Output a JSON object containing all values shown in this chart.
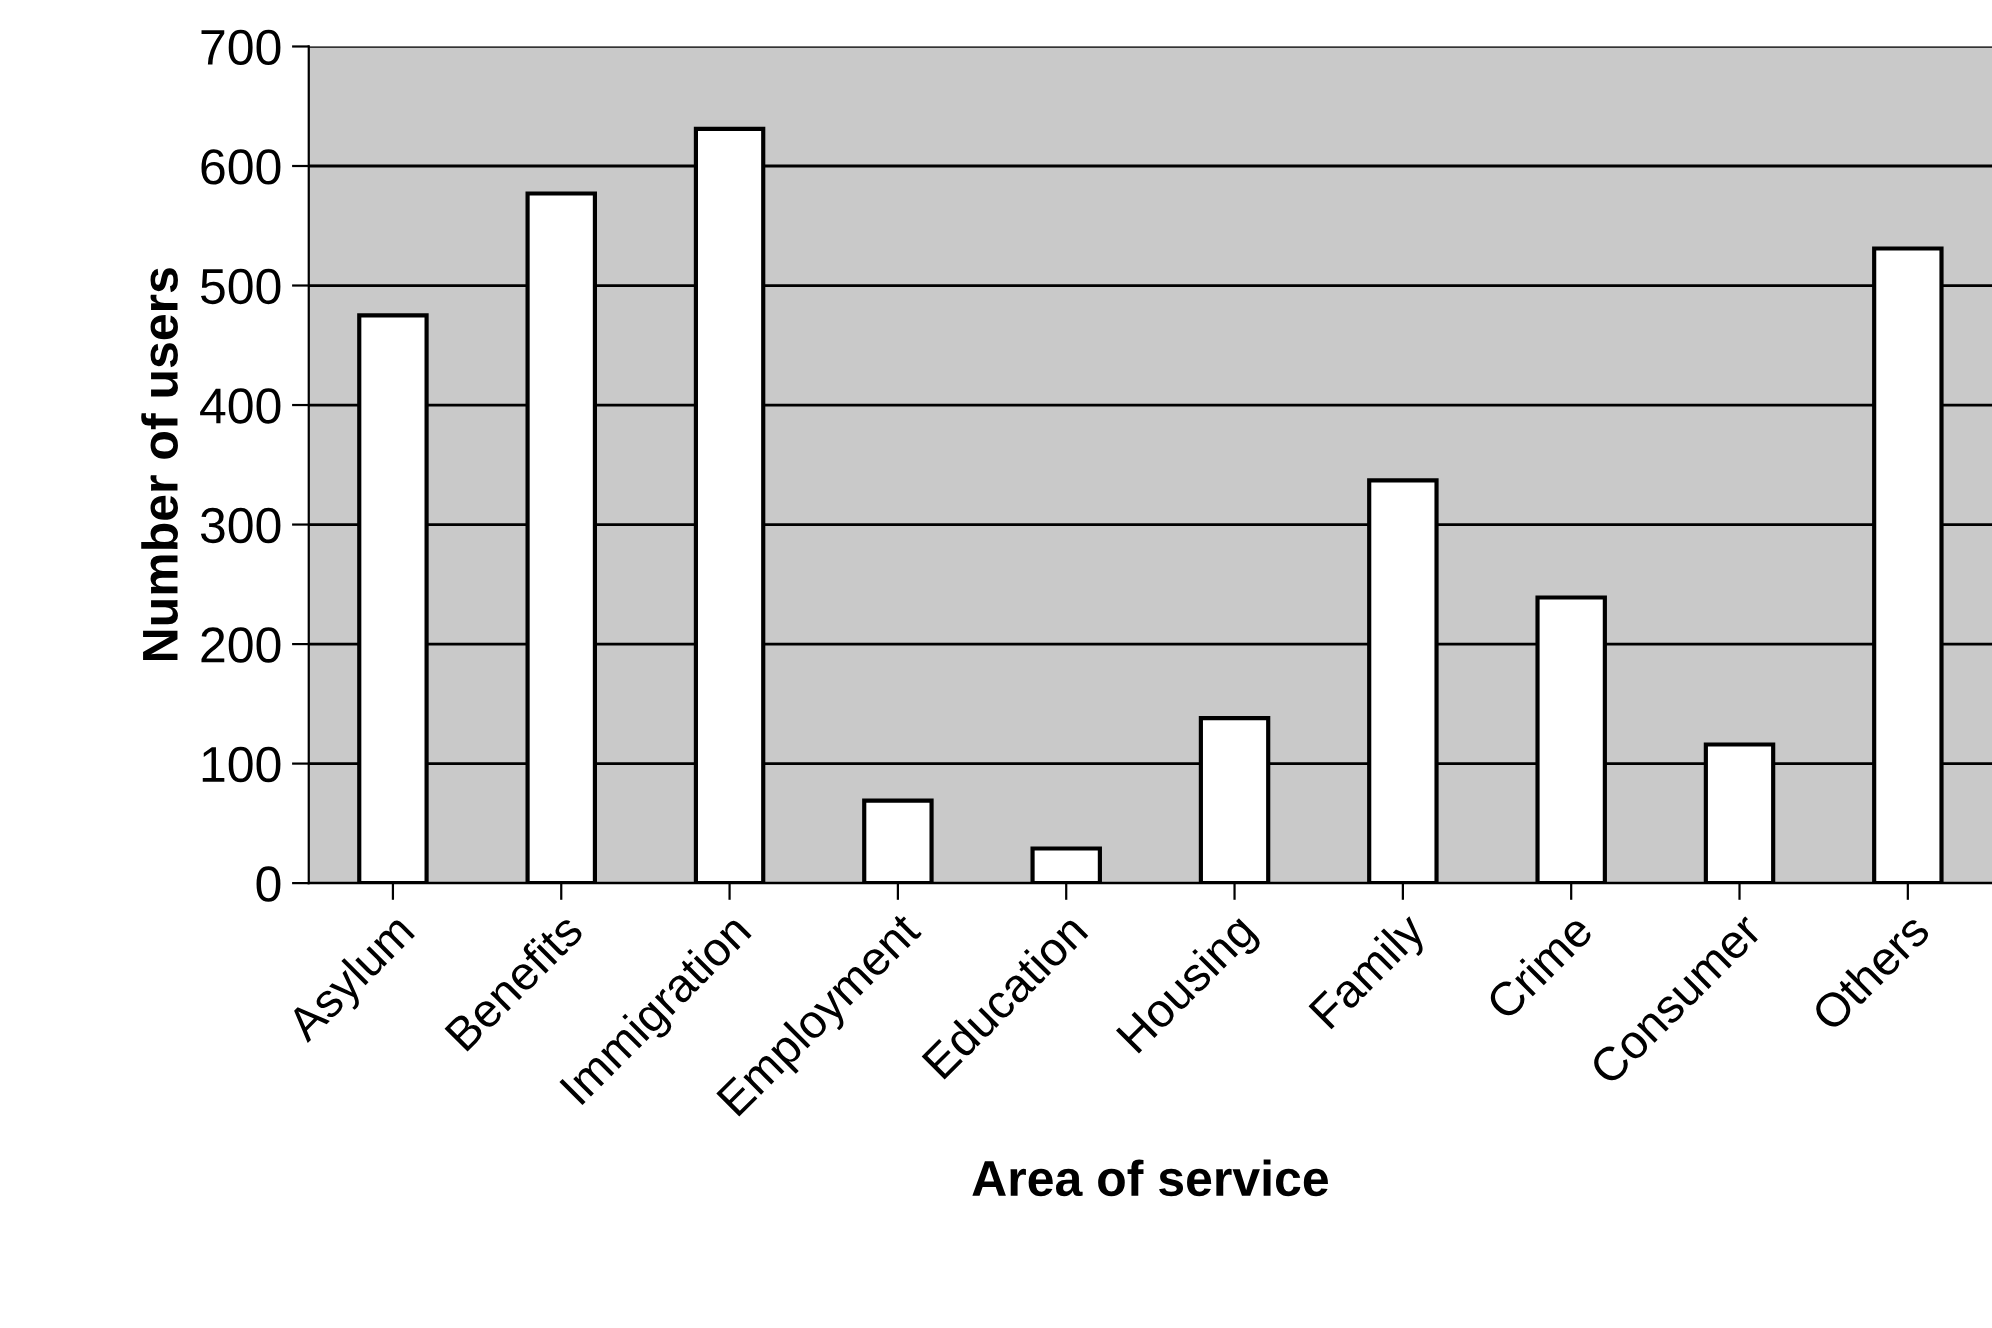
{
  "chart_data": {
    "type": "bar",
    "xlabel": "Area of service",
    "ylabel": "Number of users",
    "categories": [
      "Asylum",
      "Benefits",
      "Immigration",
      "Employment",
      "Education",
      "Housing",
      "Family",
      "Crime",
      "Consumer",
      "Others"
    ],
    "values": [
      475,
      577,
      631,
      69,
      29,
      138,
      337,
      239,
      116,
      531
    ],
    "color": "#ffffff",
    "ylim": [
      0,
      700
    ],
    "yticks": [
      0,
      100,
      200,
      300,
      400,
      500,
      600,
      700
    ],
    "grid": "y"
  }
}
